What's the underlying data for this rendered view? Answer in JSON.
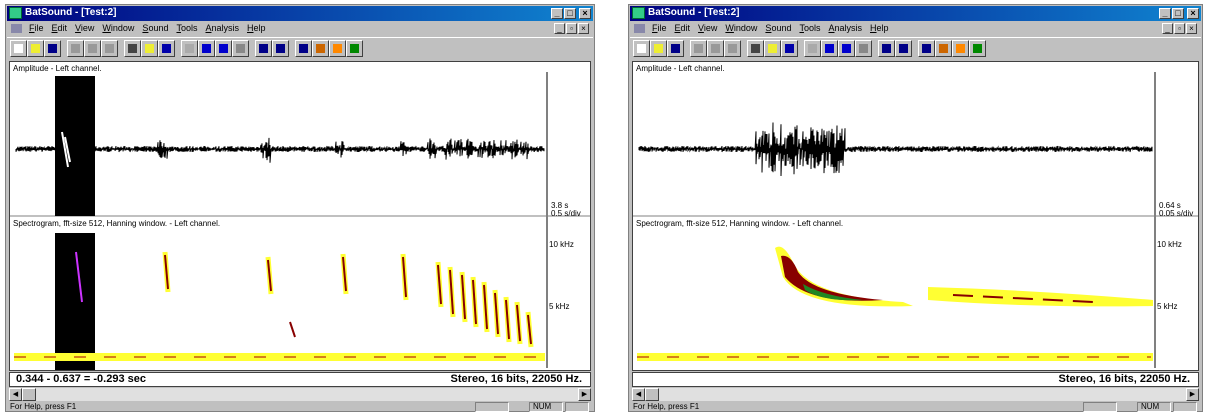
{
  "windows": [
    {
      "title": "BatSound - [Test:2]",
      "menu": [
        "File",
        "Edit",
        "View",
        "Window",
        "Sound",
        "Tools",
        "Analysis",
        "Help"
      ],
      "amplitude_label": "Amplitude - Left channel.",
      "time_total": "3.8 s",
      "time_scale": "0.5 s/div",
      "spectrogram_label": "Spectrogram, fft-size 512, Hanning window. - Left channel.",
      "freq_labels": [
        "10 kHz",
        "5 kHz"
      ],
      "selection": "0.344 - 0.637 = -0.293 sec",
      "format": "Stereo, 16 bits, 22050 Hz.",
      "help": "For Help, press F1",
      "num": "NUM"
    },
    {
      "title": "BatSound - [Test:2]",
      "menu": [
        "File",
        "Edit",
        "View",
        "Window",
        "Sound",
        "Tools",
        "Analysis",
        "Help"
      ],
      "amplitude_label": "Amplitude - Left channel.",
      "time_total": "0.64 s",
      "time_scale": "0.05 s/div",
      "spectrogram_label": "Spectrogram, fft-size 512, Hanning window. - Left channel.",
      "freq_labels": [
        "10 kHz",
        "5 kHz"
      ],
      "format": "Stereo, 16 bits, 22050 Hz.",
      "help": "For Help, press F1",
      "num": "NUM"
    }
  ]
}
